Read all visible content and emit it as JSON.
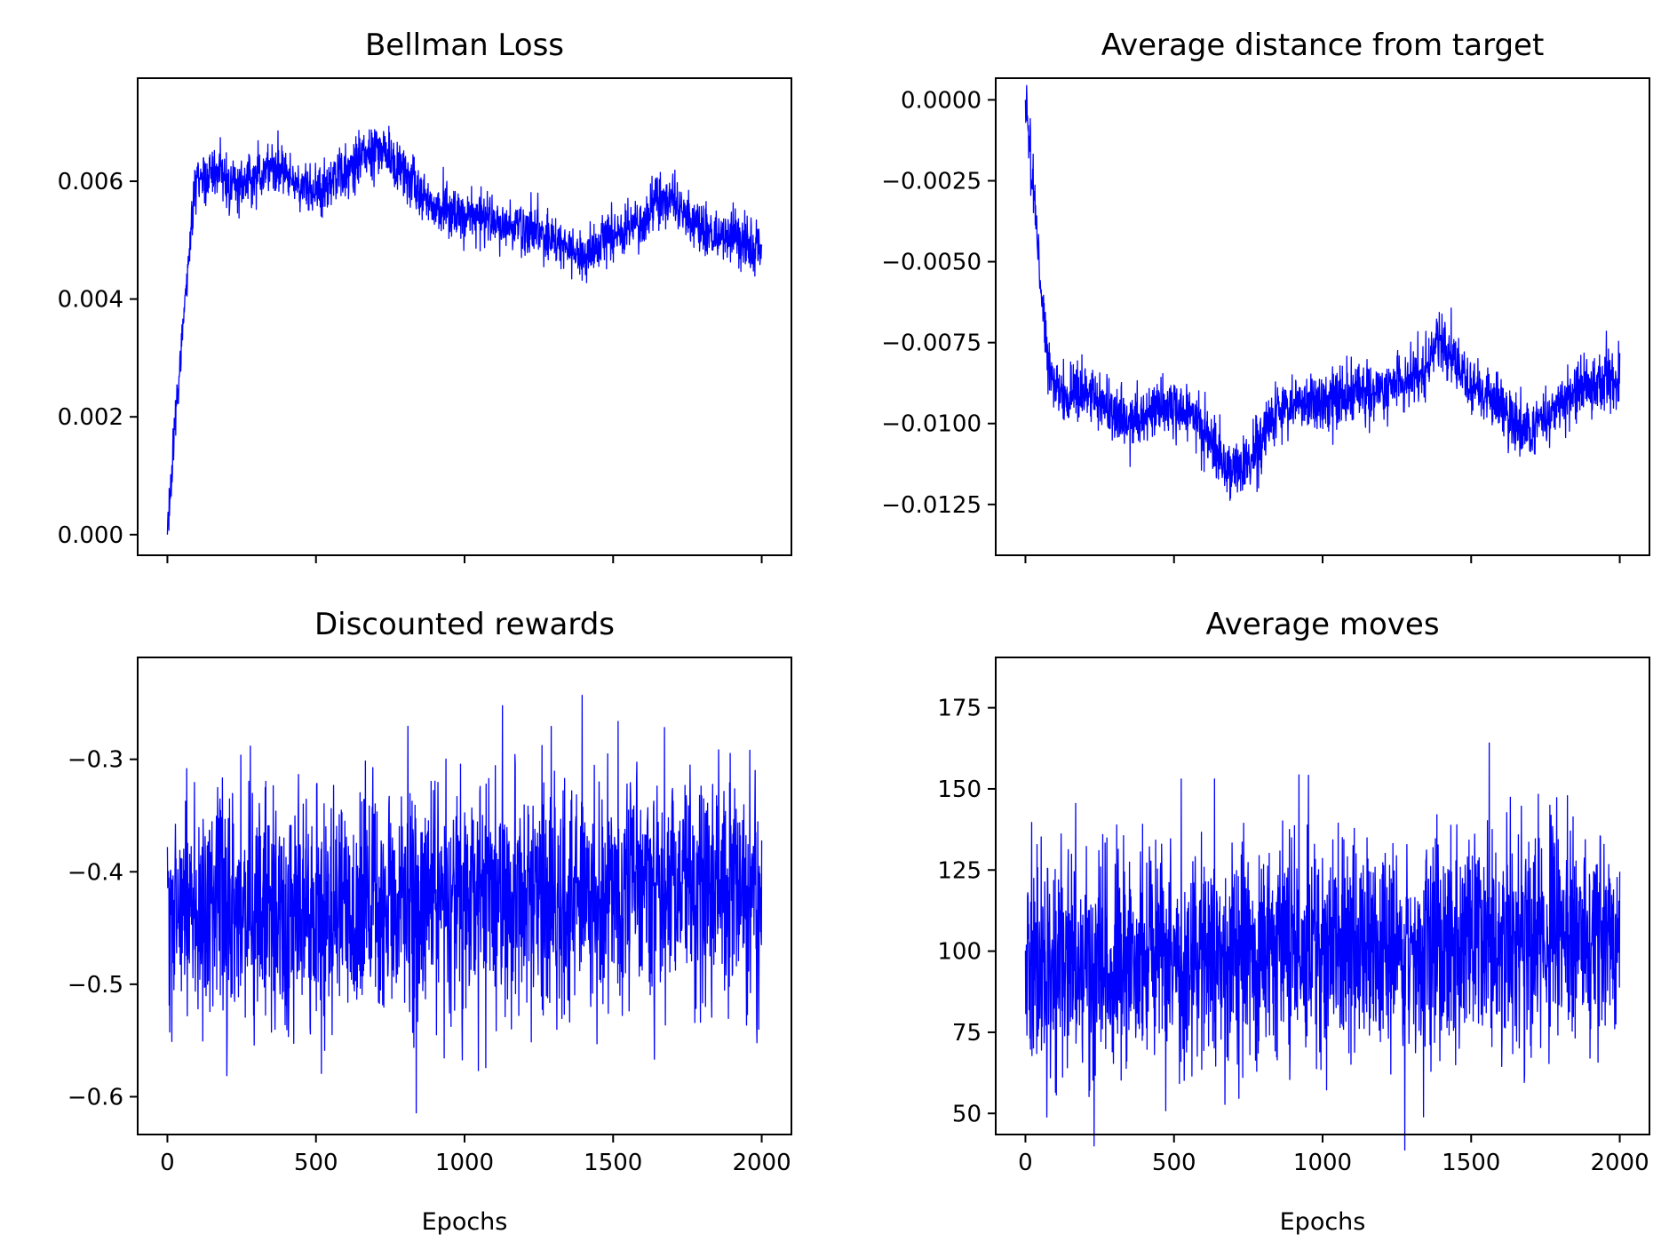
{
  "chart_data": [
    {
      "type": "line",
      "title": "Bellman Loss",
      "xlabel": "",
      "ylabel": "",
      "xlim": [
        -100,
        2100
      ],
      "ylim": [
        -0.00035,
        0.00775
      ],
      "x_ticks": [
        0,
        500,
        1000,
        1500,
        2000
      ],
      "x_tick_labels": [],
      "y_ticks": [
        0.0,
        0.002,
        0.004,
        0.006
      ],
      "y_tick_labels": [
        "0.000",
        "0.002",
        "0.004",
        "0.006"
      ],
      "grid": false,
      "legend": "none",
      "n_points": 2000,
      "noise": 0.00022,
      "series": [
        {
          "color": "#0000ff",
          "trend": {
            "x": [
              0,
              20,
              40,
              60,
              80,
              100,
              150,
              200,
              250,
              300,
              350,
              400,
              450,
              500,
              550,
              600,
              650,
              700,
              750,
              800,
              850,
              900,
              950,
              1000,
              1050,
              1100,
              1150,
              1200,
              1250,
              1300,
              1350,
              1400,
              1450,
              1500,
              1550,
              1600,
              1650,
              1700,
              1750,
              1800,
              1850,
              1900,
              1950,
              2000
            ],
            "y": [
              0.0,
              0.0014,
              0.0028,
              0.004,
              0.0052,
              0.006,
              0.0062,
              0.006,
              0.0059,
              0.0061,
              0.0063,
              0.0061,
              0.0059,
              0.0058,
              0.006,
              0.0062,
              0.0064,
              0.0066,
              0.0064,
              0.0061,
              0.0058,
              0.0056,
              0.0055,
              0.0054,
              0.0054,
              0.0053,
              0.0052,
              0.0052,
              0.0051,
              0.005,
              0.0049,
              0.0047,
              0.0049,
              0.0051,
              0.0052,
              0.0053,
              0.0056,
              0.0057,
              0.0054,
              0.0052,
              0.005,
              0.0051,
              0.0049,
              0.0048
            ]
          }
        }
      ]
    },
    {
      "type": "line",
      "title": "Average distance from target",
      "xlabel": "",
      "ylabel": "",
      "xlim": [
        -100,
        2100
      ],
      "ylim": [
        -0.01407,
        0.00067
      ],
      "x_ticks": [
        0,
        500,
        1000,
        1500,
        2000
      ],
      "x_tick_labels": [],
      "y_ticks": [
        0.0,
        -0.0025,
        -0.005,
        -0.0075,
        -0.01,
        -0.0125
      ],
      "y_tick_labels": [
        "0.0000",
        "−0.0025",
        "−0.0050",
        "−0.0075",
        "−0.0100",
        "−0.0125"
      ],
      "grid": false,
      "legend": "none",
      "n_points": 2000,
      "noise": 0.00045,
      "series": [
        {
          "color": "#0000ff",
          "trend": {
            "x": [
              0,
              25,
              50,
              75,
              100,
              150,
              200,
              250,
              300,
              350,
              400,
              450,
              500,
              550,
              600,
              650,
              700,
              750,
              800,
              850,
              900,
              950,
              1000,
              1050,
              1100,
              1150,
              1200,
              1250,
              1300,
              1350,
              1400,
              1450,
              1500,
              1550,
              1600,
              1650,
              1700,
              1750,
              1800,
              1850,
              1900,
              1950,
              2000
            ],
            "y": [
              0.0,
              -0.0025,
              -0.0055,
              -0.008,
              -0.0091,
              -0.0092,
              -0.0091,
              -0.0094,
              -0.0096,
              -0.01,
              -0.0098,
              -0.0095,
              -0.0094,
              -0.0096,
              -0.0102,
              -0.011,
              -0.0115,
              -0.0112,
              -0.0104,
              -0.0096,
              -0.0095,
              -0.0094,
              -0.0093,
              -0.0092,
              -0.0091,
              -0.009,
              -0.0089,
              -0.0088,
              -0.0086,
              -0.0082,
              -0.0075,
              -0.0082,
              -0.0088,
              -0.0092,
              -0.0095,
              -0.01,
              -0.0102,
              -0.0098,
              -0.0094,
              -0.009,
              -0.0088,
              -0.0087,
              -0.0086
            ]
          }
        }
      ]
    },
    {
      "type": "line",
      "title": "Discounted rewards",
      "xlabel": "Epochs",
      "ylabel": "",
      "xlim": [
        -100,
        2100
      ],
      "ylim": [
        -0.6336,
        -0.2094
      ],
      "x_ticks": [
        0,
        500,
        1000,
        1500,
        2000
      ],
      "x_tick_labels": [
        "0",
        "500",
        "1000",
        "1500",
        "2000"
      ],
      "y_ticks": [
        -0.3,
        -0.4,
        -0.5,
        -0.6
      ],
      "y_tick_labels": [
        "−0.3",
        "−0.4",
        "−0.5",
        "−0.6"
      ],
      "grid": false,
      "legend": "none",
      "n_points": 2000,
      "noise": 0.052,
      "series": [
        {
          "color": "#0000ff",
          "trend": {
            "x": [
              0,
              250,
              500,
              750,
              1000,
              1250,
              1500,
              1750,
              2000
            ],
            "y": [
              -0.44,
              -0.44,
              -0.435,
              -0.43,
              -0.425,
              -0.42,
              -0.415,
              -0.415,
              -0.41
            ]
          }
        }
      ]
    },
    {
      "type": "line",
      "title": "Average moves",
      "xlabel": "Epochs",
      "ylabel": "",
      "xlim": [
        -100,
        2100
      ],
      "ylim": [
        43.5,
        190.5
      ],
      "x_ticks": [
        0,
        500,
        1000,
        1500,
        2000
      ],
      "x_tick_labels": [
        "0",
        "500",
        "1000",
        "1500",
        "2000"
      ],
      "y_ticks": [
        50,
        75,
        100,
        125,
        150,
        175
      ],
      "y_tick_labels": [
        "50",
        "75",
        "100",
        "125",
        "150",
        "175"
      ],
      "grid": false,
      "legend": "none",
      "n_points": 2000,
      "noise": 17,
      "series": [
        {
          "color": "#0000ff",
          "trend": {
            "x": [
              0,
              250,
              500,
              750,
              1000,
              1250,
              1500,
              1750,
              2000
            ],
            "y": [
              96,
              96,
              98,
              100,
              101,
              102,
              103,
              104,
              106
            ]
          }
        }
      ]
    }
  ]
}
